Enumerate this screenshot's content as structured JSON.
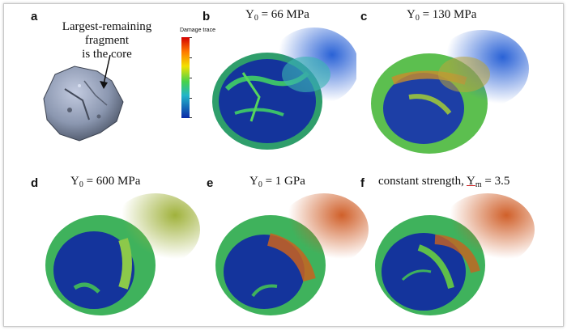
{
  "panels": {
    "a": {
      "letter": "a",
      "annotation_lines": [
        "Largest-remaining",
        "fragment",
        "is the core"
      ]
    },
    "b": {
      "letter": "b",
      "title_prefix": "Y",
      "title_sub": "0",
      "title_suffix": " = 66 MPa"
    },
    "c": {
      "letter": "c",
      "title_prefix": "Y",
      "title_sub": "0",
      "title_suffix": " = 130 MPa"
    },
    "d": {
      "letter": "d",
      "title_prefix": "Y",
      "title_sub": "0",
      "title_suffix": " = 600 MPa"
    },
    "e": {
      "letter": "e",
      "title_prefix": "Y",
      "title_sub": "0",
      "title_suffix": " = 1 GPa"
    },
    "f": {
      "letter": "f",
      "title_prefix": "constant strength, ",
      "title_underlined": "Y",
      "title_sub": "m",
      "title_suffix": " = 3.5"
    }
  },
  "colorbar": {
    "title": "Damage trace"
  },
  "colors": {
    "damage_low": "#0a2aa8",
    "damage_mid": "#46d24b",
    "damage_high": "#d40000",
    "rock": "#8b97b0"
  }
}
